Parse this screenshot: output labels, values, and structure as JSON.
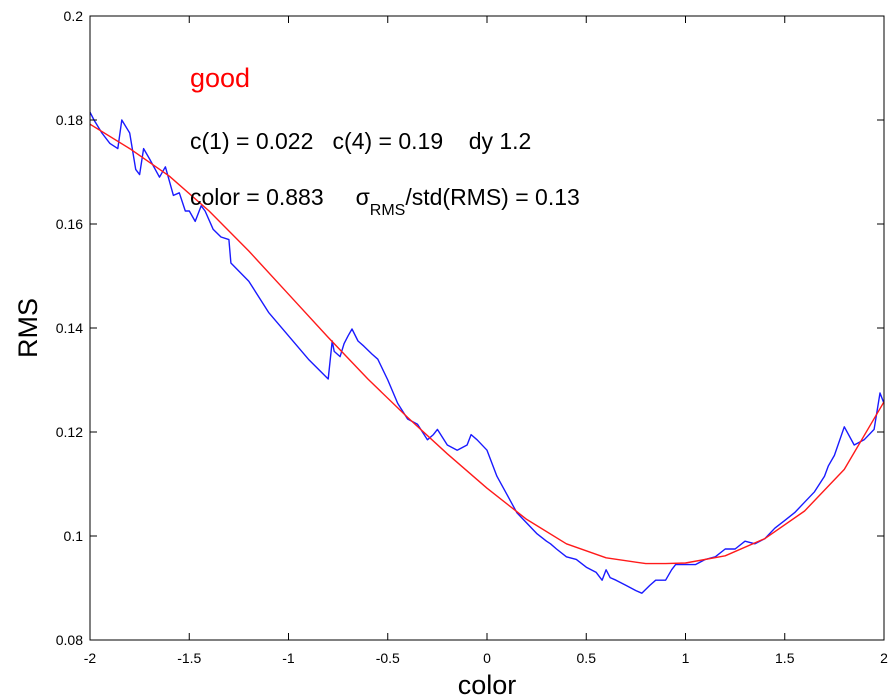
{
  "chart_data": {
    "type": "line",
    "xlabel": "color",
    "ylabel": "RMS",
    "xlim": [
      -2,
      2
    ],
    "ylim": [
      0.08,
      0.2
    ],
    "xticks": [
      -2,
      -1.5,
      -1,
      -0.5,
      0,
      0.5,
      1,
      1.5,
      2
    ],
    "xtick_labels": [
      "-2",
      "-1.5",
      "-1",
      "-0.5",
      "0",
      "0.5",
      "1",
      "1.5",
      "2"
    ],
    "yticks": [
      0.08,
      0.1,
      0.12,
      0.14,
      0.16,
      0.18,
      0.2
    ],
    "ytick_labels": [
      "0.08",
      "0.1",
      "0.12",
      "0.14",
      "0.16",
      "0.18",
      "0.2"
    ],
    "grid": false,
    "annotations": {
      "label": "good",
      "line1": "c(1) = 0.022   c(4) = 0.19    dy 1.2",
      "line2_prefix": "color = 0.883     ",
      "sigma": "σ",
      "sigma_sub": "RMS",
      "line2_suffix": "/std(RMS) = 0.13"
    },
    "colors": {
      "measured": "#1a1aff",
      "fit": "#ff1a1a",
      "label": "#ff0000"
    },
    "series": [
      {
        "color": "#1a1aff",
        "x": [
          -2.0,
          -1.98,
          -1.94,
          -1.9,
          -1.86,
          -1.84,
          -1.8,
          -1.77,
          -1.75,
          -1.73,
          -1.7,
          -1.65,
          -1.62,
          -1.58,
          -1.55,
          -1.52,
          -1.5,
          -1.47,
          -1.44,
          -1.42,
          -1.38,
          -1.34,
          -1.3,
          -1.29,
          -1.2,
          -1.1,
          -1.0,
          -0.9,
          -0.8,
          -0.78,
          -0.77,
          -0.74,
          -0.72,
          -0.7,
          -0.68,
          -0.65,
          -0.62,
          -0.58,
          -0.55,
          -0.5,
          -0.45,
          -0.4,
          -0.35,
          -0.3,
          -0.27,
          -0.25,
          -0.2,
          -0.15,
          -0.1,
          -0.08,
          -0.05,
          0.0,
          0.05,
          0.1,
          0.15,
          0.2,
          0.25,
          0.3,
          0.32,
          0.35,
          0.4,
          0.45,
          0.5,
          0.55,
          0.58,
          0.6,
          0.62,
          0.65,
          0.7,
          0.75,
          0.78,
          0.82,
          0.85,
          0.9,
          0.93,
          0.95,
          1.0,
          1.05,
          1.1,
          1.15,
          1.2,
          1.25,
          1.3,
          1.35,
          1.4,
          1.45,
          1.5,
          1.55,
          1.6,
          1.65,
          1.7,
          1.72,
          1.75,
          1.8,
          1.85,
          1.9,
          1.95,
          1.98,
          2.0
        ],
        "y": [
          0.1815,
          0.18,
          0.1775,
          0.1755,
          0.1745,
          0.18,
          0.1775,
          0.1705,
          0.1695,
          0.1745,
          0.1725,
          0.169,
          0.171,
          0.1655,
          0.166,
          0.1625,
          0.1625,
          0.1605,
          0.1635,
          0.1625,
          0.159,
          0.1575,
          0.157,
          0.1525,
          0.149,
          0.143,
          0.1385,
          0.134,
          0.1302,
          0.1375,
          0.1355,
          0.1345,
          0.137,
          0.1385,
          0.1398,
          0.1375,
          0.1365,
          0.135,
          0.134,
          0.13,
          0.1255,
          0.1225,
          0.1215,
          0.1185,
          0.1195,
          0.1205,
          0.1175,
          0.1165,
          0.1175,
          0.1195,
          0.1185,
          0.1165,
          0.1115,
          0.108,
          0.1045,
          0.1025,
          0.1005,
          0.099,
          0.0985,
          0.0975,
          0.096,
          0.0955,
          0.094,
          0.093,
          0.0915,
          0.0935,
          0.092,
          0.0915,
          0.0905,
          0.0895,
          0.089,
          0.0905,
          0.0915,
          0.0915,
          0.0935,
          0.0945,
          0.0945,
          0.0945,
          0.0955,
          0.096,
          0.0975,
          0.0975,
          0.099,
          0.0985,
          0.0995,
          0.1015,
          0.103,
          0.1045,
          0.1065,
          0.1085,
          0.1115,
          0.1135,
          0.1155,
          0.121,
          0.1175,
          0.1185,
          0.1205,
          0.1275,
          0.1255
        ]
      },
      {
        "color": "#ff1a1a",
        "x": [
          -2.0,
          -1.8,
          -1.6,
          -1.4,
          -1.2,
          -1.0,
          -0.8,
          -0.6,
          -0.4,
          -0.2,
          0.0,
          0.2,
          0.4,
          0.6,
          0.8,
          0.9,
          1.0,
          1.2,
          1.4,
          1.6,
          1.8,
          2.0
        ],
        "y": [
          0.1792,
          0.1745,
          0.1692,
          0.1625,
          0.1548,
          0.1465,
          0.1382,
          0.1302,
          0.1228,
          0.1158,
          0.1092,
          0.1032,
          0.0985,
          0.0958,
          0.0947,
          0.0947,
          0.0948,
          0.0962,
          0.0995,
          0.1048,
          0.1128,
          0.1258
        ]
      }
    ]
  }
}
